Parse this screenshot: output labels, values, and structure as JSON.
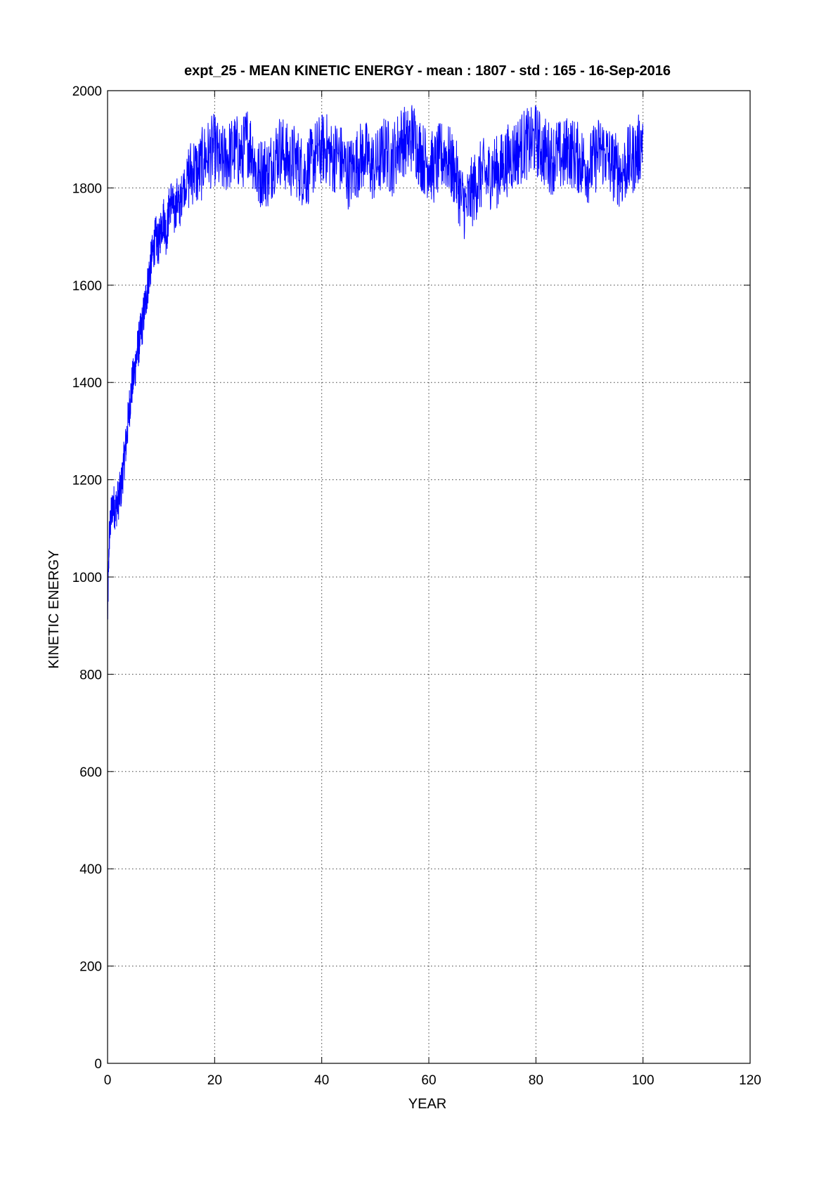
{
  "chart_data": {
    "type": "line",
    "title": "expt_25 - MEAN KINETIC ENERGY - mean :  1807 - std :   165 - 16-Sep-2016",
    "xlabel": "YEAR",
    "ylabel": "KINETIC ENERGY",
    "xlim": [
      0,
      120
    ],
    "ylim": [
      0,
      2000
    ],
    "x_ticks": [
      0,
      20,
      40,
      60,
      80,
      100,
      120
    ],
    "y_ticks": [
      0,
      200,
      400,
      600,
      800,
      1000,
      1200,
      1400,
      1600,
      1800,
      2000
    ],
    "grid": true,
    "series": [
      {
        "color": "#0000ff",
        "x": [
          0,
          0.3,
          0.6,
          1,
          1.5,
          2,
          2.5,
          3,
          3.5,
          4,
          4.5,
          5,
          5.5,
          6,
          6.5,
          7,
          7.5,
          8,
          8.5,
          9,
          9.5,
          10,
          10.5,
          11,
          11.5,
          12,
          12.5,
          13,
          13.5,
          14,
          15,
          16,
          17,
          18,
          19,
          20,
          21,
          22,
          23,
          24,
          25,
          26,
          27,
          28,
          29,
          30,
          31,
          32,
          33,
          34,
          35,
          36,
          37,
          38,
          39,
          40,
          41,
          42,
          43,
          44,
          45,
          46,
          47,
          48,
          49,
          50,
          51,
          52,
          53,
          54,
          55,
          56,
          57,
          58,
          59,
          60,
          61,
          62,
          63,
          64,
          65,
          66,
          67,
          68,
          69,
          70,
          71,
          72,
          73,
          74,
          75,
          76,
          77,
          78,
          79,
          80,
          81,
          82,
          83,
          84,
          85,
          86,
          87,
          88,
          89,
          90,
          91,
          92,
          93,
          94,
          95,
          96,
          97,
          98,
          99,
          100
        ],
        "y": [
          910,
          1080,
          1120,
          1150,
          1140,
          1160,
          1180,
          1230,
          1280,
          1340,
          1390,
          1420,
          1460,
          1490,
          1520,
          1560,
          1600,
          1640,
          1670,
          1700,
          1680,
          1720,
          1740,
          1700,
          1760,
          1780,
          1740,
          1780,
          1760,
          1800,
          1820,
          1840,
          1830,
          1860,
          1870,
          1880,
          1850,
          1860,
          1870,
          1880,
          1860,
          1900,
          1880,
          1820,
          1840,
          1830,
          1860,
          1880,
          1870,
          1850,
          1860,
          1840,
          1830,
          1850,
          1870,
          1880,
          1880,
          1860,
          1870,
          1850,
          1830,
          1840,
          1860,
          1870,
          1850,
          1840,
          1860,
          1880,
          1850,
          1880,
          1900,
          1890,
          1910,
          1880,
          1860,
          1850,
          1840,
          1860,
          1870,
          1850,
          1830,
          1780,
          1760,
          1790,
          1810,
          1830,
          1820,
          1840,
          1830,
          1850,
          1860,
          1870,
          1880,
          1890,
          1890,
          1900,
          1880,
          1870,
          1860,
          1870,
          1860,
          1880,
          1870,
          1860,
          1850,
          1840,
          1860,
          1880,
          1870,
          1850,
          1840,
          1830,
          1850,
          1860,
          1870,
          1910
        ]
      }
    ]
  }
}
